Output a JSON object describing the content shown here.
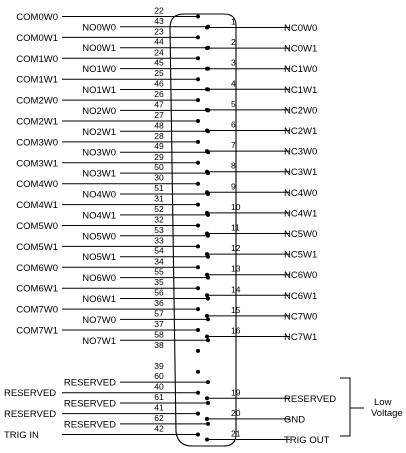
{
  "left_lower_row": [
    {
      "pin": "22",
      "label": "COM0W0",
      "wired": true
    },
    {
      "pin": "23",
      "label": "COM0W1",
      "wired": true
    },
    {
      "pin": "24",
      "label": "COM1W0",
      "wired": true
    },
    {
      "pin": "25",
      "label": "COM1W1",
      "wired": true
    },
    {
      "pin": "26",
      "label": "COM2W0",
      "wired": true
    },
    {
      "pin": "27",
      "label": "COM2W1",
      "wired": true
    },
    {
      "pin": "28",
      "label": "COM3W0",
      "wired": true
    },
    {
      "pin": "29",
      "label": "COM3W1",
      "wired": true
    },
    {
      "pin": "30",
      "label": "COM4W0",
      "wired": true
    },
    {
      "pin": "31",
      "label": "COM4W1",
      "wired": true
    },
    {
      "pin": "32",
      "label": "COM5W0",
      "wired": true
    },
    {
      "pin": "33",
      "label": "COM5W1",
      "wired": true
    },
    {
      "pin": "34",
      "label": "COM6W0",
      "wired": true
    },
    {
      "pin": "35",
      "label": "COM6W1",
      "wired": true
    },
    {
      "pin": "36",
      "label": "COM7W0",
      "wired": true
    },
    {
      "pin": "37",
      "label": "COM7W1",
      "wired": true
    },
    {
      "pin": "38",
      "label": "",
      "wired": false
    },
    {
      "pin": "39",
      "label": "",
      "wired": false
    },
    {
      "pin": "40",
      "label": "RESERVED",
      "wired": true
    },
    {
      "pin": "41",
      "label": "RESERVED",
      "wired": true
    },
    {
      "pin": "42",
      "label": "TRIG IN",
      "wired": true
    }
  ],
  "left_upper_row": [
    {
      "pin": "43",
      "label": "NO0W0",
      "wired": true
    },
    {
      "pin": "44",
      "label": "NO0W1",
      "wired": true
    },
    {
      "pin": "45",
      "label": "NO1W0",
      "wired": true
    },
    {
      "pin": "46",
      "label": "NO1W1",
      "wired": true
    },
    {
      "pin": "47",
      "label": "NO2W0",
      "wired": true
    },
    {
      "pin": "48",
      "label": "NO2W1",
      "wired": true
    },
    {
      "pin": "49",
      "label": "NO3W0",
      "wired": true
    },
    {
      "pin": "50",
      "label": "NO3W1",
      "wired": true
    },
    {
      "pin": "51",
      "label": "NO4W0",
      "wired": true
    },
    {
      "pin": "52",
      "label": "NO4W1",
      "wired": true
    },
    {
      "pin": "53",
      "label": "NO5W0",
      "wired": true
    },
    {
      "pin": "54",
      "label": "NO5W1",
      "wired": true
    },
    {
      "pin": "55",
      "label": "NO6W0",
      "wired": true
    },
    {
      "pin": "56",
      "label": "NO6W1",
      "wired": true
    },
    {
      "pin": "57",
      "label": "NO7W0",
      "wired": true
    },
    {
      "pin": "58",
      "label": "NO7W1",
      "wired": true
    },
    {
      "pin": "60",
      "label": "RESERVED",
      "wired": true
    },
    {
      "pin": "61",
      "label": "RESERVED",
      "wired": true
    },
    {
      "pin": "62",
      "label": "RESERVED",
      "wired": true
    }
  ],
  "right_row": [
    {
      "pin": "1",
      "label": "NC0W0"
    },
    {
      "pin": "2",
      "label": "NC0W1"
    },
    {
      "pin": "3",
      "label": "NC1W0"
    },
    {
      "pin": "4",
      "label": "NC1W1"
    },
    {
      "pin": "5",
      "label": "NC2W0"
    },
    {
      "pin": "6",
      "label": "NC2W1"
    },
    {
      "pin": "7",
      "label": "NC3W0"
    },
    {
      "pin": "8",
      "label": "NC3W1"
    },
    {
      "pin": "9",
      "label": "NC4W0"
    },
    {
      "pin": "10",
      "label": "NC4W1"
    },
    {
      "pin": "11",
      "label": "NC5W0"
    },
    {
      "pin": "12",
      "label": "NC5W1"
    },
    {
      "pin": "13",
      "label": "NC6W0"
    },
    {
      "pin": "14",
      "label": "NC6W1"
    },
    {
      "pin": "15",
      "label": "NC7W0"
    },
    {
      "pin": "16",
      "label": "NC7W1"
    },
    {
      "pin": "19",
      "label": "RESERVED"
    },
    {
      "pin": "20",
      "label": "GND"
    },
    {
      "pin": "21",
      "label": "TRIG OUT"
    }
  ],
  "bracket_label_line1": "Low",
  "bracket_label_line2": "Voltage"
}
